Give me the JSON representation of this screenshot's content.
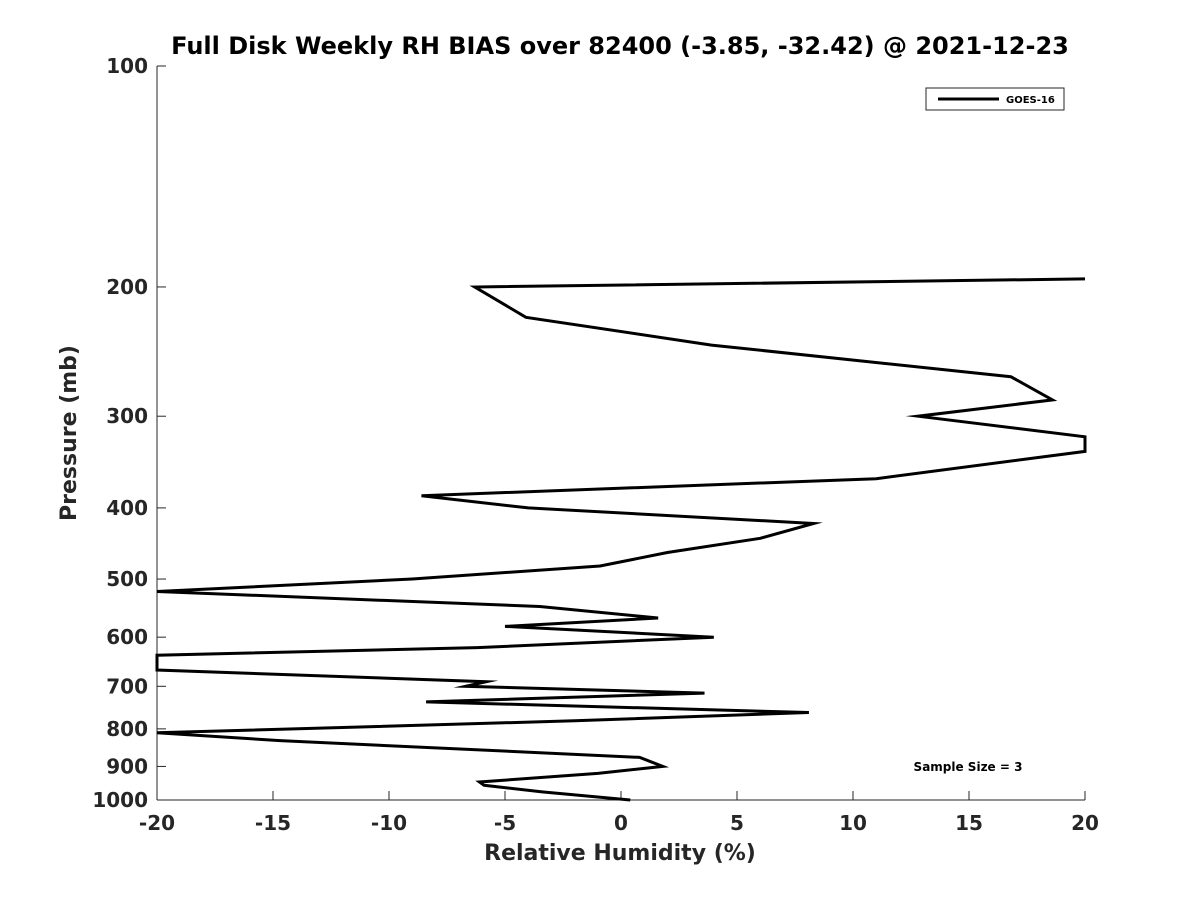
{
  "chart_data": {
    "type": "line",
    "title": "Full Disk Weekly RH BIAS over 82400 (-3.85, -32.42) @ 2021-12-23",
    "xlabel": "Relative Humidity (%)",
    "ylabel": "Pressure (mb)",
    "xlim": [
      -20,
      20
    ],
    "ylim": [
      100,
      1000
    ],
    "yscale": "log",
    "y_reversed": true,
    "grid": false,
    "legend_position": "top-right",
    "xticks": [
      -20,
      -15,
      -10,
      -5,
      0,
      5,
      10,
      15,
      20
    ],
    "xtick_labels": [
      "-20",
      "-15",
      "-10",
      "-5",
      "0",
      "5",
      "10",
      "15",
      "20"
    ],
    "yticks": [
      100,
      200,
      300,
      400,
      500,
      600,
      700,
      800,
      900,
      1000
    ],
    "ytick_labels": [
      "100",
      "200",
      "300",
      "400",
      "500",
      "600",
      "700",
      "800",
      "900",
      "1000"
    ],
    "series": [
      {
        "name": "GOES-16",
        "color": "#000000",
        "x": [
          20,
          -6.3,
          -4.1,
          3.9,
          16.8,
          18.6,
          12.8,
          20,
          20,
          11.0,
          -8.6,
          -4.0,
          8.3,
          6.0,
          2.0,
          -0.9,
          -9.0,
          -20,
          -3.5,
          1.6,
          -5.0,
          4.0,
          -6.2,
          -20,
          -20,
          -5.8,
          -6.7,
          3.6,
          -8.4,
          8.1,
          -2.0,
          -20,
          -14.7,
          0.8,
          1.8,
          -1.0,
          -6.1,
          -5.9,
          -3.4,
          0.4
        ],
        "y": [
          195,
          200,
          220,
          240,
          265,
          285,
          300,
          320,
          335,
          365,
          385,
          400,
          420,
          440,
          460,
          480,
          500,
          520,
          545,
          565,
          580,
          600,
          620,
          635,
          665,
          690,
          700,
          715,
          735,
          760,
          780,
          810,
          830,
          875,
          900,
          920,
          945,
          955,
          975,
          1000
        ]
      }
    ],
    "annotations": [
      "Sample Size = 3"
    ]
  }
}
